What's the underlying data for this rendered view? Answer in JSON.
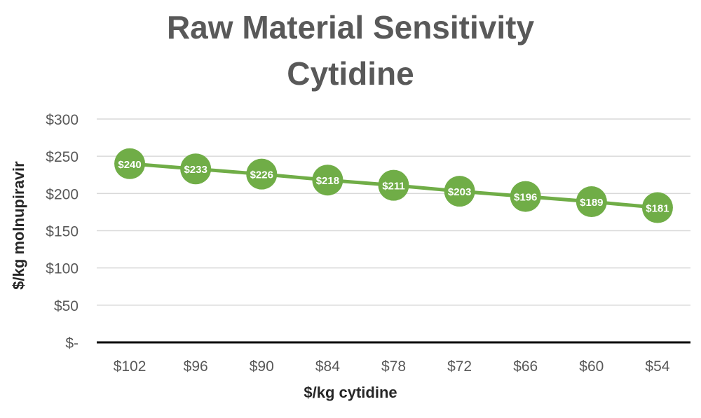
{
  "chart_data": {
    "type": "line",
    "title": "Raw Material Sensitivity",
    "subtitle": "Cytidine",
    "xlabel": "$/kg cytidine",
    "ylabel": "$/kg molnupiravir",
    "categories": [
      "$102",
      "$96",
      "$90",
      "$84",
      "$78",
      "$72",
      "$66",
      "$60",
      "$54"
    ],
    "series": [
      {
        "values": [
          240,
          233,
          226,
          218,
          211,
          203,
          196,
          189,
          181
        ],
        "labels": [
          "$240",
          "$233",
          "$226",
          "$218",
          "$211",
          "$203",
          "$196",
          "$189",
          "$181"
        ]
      }
    ],
    "y_ticks": [
      {
        "value": 300,
        "label": "$300"
      },
      {
        "value": 250,
        "label": "$250"
      },
      {
        "value": 200,
        "label": "$200"
      },
      {
        "value": 150,
        "label": "$150"
      },
      {
        "value": 100,
        "label": "$100"
      },
      {
        "value": 50,
        "label": "$50"
      },
      {
        "value": 0,
        "label": "$-"
      }
    ],
    "ylim": [
      0,
      300
    ],
    "grid": true,
    "legend": "none",
    "colors": {
      "line": "#70ad47",
      "marker": "#70ad47",
      "marker_text": "#ffffff",
      "grid": "#d9d9d9",
      "axis": "#000000",
      "tick_text": "#595959",
      "title_text": "#595959"
    }
  }
}
